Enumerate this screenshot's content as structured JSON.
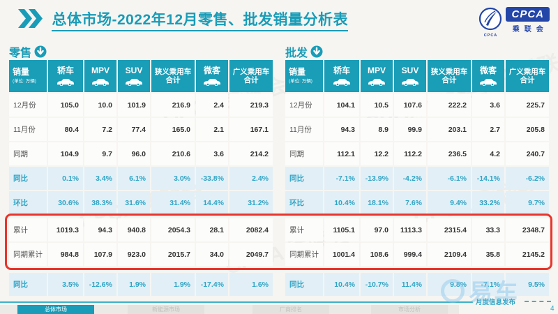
{
  "header": {
    "title": "总体市场-2022年12月零售、批发销量分析表",
    "logo": {
      "acronym": "CPCA",
      "cn_name": "乘联会",
      "circle_caption": "CPCA"
    }
  },
  "tables": [
    {
      "id": "retail",
      "section_label": "零售",
      "first_col": {
        "title": "销量",
        "unit": "(单位: 万辆)"
      },
      "columns": [
        {
          "label": "轿车",
          "icon": "car"
        },
        {
          "label": "MPV",
          "icon": "car"
        },
        {
          "label": "SUV",
          "icon": "car"
        },
        {
          "label": "狭义乘用车合计",
          "icon": null
        },
        {
          "label": "微客",
          "icon": "car"
        },
        {
          "label": "广义乘用车合计",
          "icon": null
        }
      ],
      "rows": [
        {
          "label": "12月份",
          "type": "value",
          "values": [
            "105.0",
            "10.0",
            "101.9",
            "216.9",
            "2.4",
            "219.3"
          ]
        },
        {
          "label": "11月份",
          "type": "value",
          "values": [
            "80.4",
            "7.2",
            "77.4",
            "165.0",
            "2.1",
            "167.1"
          ]
        },
        {
          "label": "同期",
          "type": "value",
          "values": [
            "104.9",
            "9.7",
            "96.0",
            "210.6",
            "3.6",
            "214.2"
          ]
        },
        {
          "label": "同比",
          "type": "percent",
          "values": [
            "0.1%",
            "3.4%",
            "6.1%",
            "3.0%",
            "-33.8%",
            "2.4%"
          ]
        },
        {
          "label": "环比",
          "type": "percent",
          "values": [
            "30.6%",
            "38.3%",
            "31.6%",
            "31.4%",
            "14.4%",
            "31.2%"
          ]
        },
        {
          "label": "累计",
          "type": "value",
          "values": [
            "1019.3",
            "94.3",
            "940.8",
            "2054.3",
            "28.1",
            "2082.4"
          ]
        },
        {
          "label": "同期累计",
          "type": "value",
          "values": [
            "984.8",
            "107.9",
            "923.0",
            "2015.7",
            "34.0",
            "2049.7"
          ]
        },
        {
          "label": "同比",
          "type": "percent",
          "values": [
            "3.5%",
            "-12.6%",
            "1.9%",
            "1.9%",
            "-17.4%",
            "1.6%"
          ]
        }
      ]
    },
    {
      "id": "wholesale",
      "section_label": "批发",
      "first_col": {
        "title": "销量",
        "unit": "(单位: 万辆)"
      },
      "columns": [
        {
          "label": "轿车",
          "icon": "car"
        },
        {
          "label": "MPV",
          "icon": "car"
        },
        {
          "label": "SUV",
          "icon": "car"
        },
        {
          "label": "狭义乘用车合计",
          "icon": null
        },
        {
          "label": "微客",
          "icon": "car"
        },
        {
          "label": "广义乘用车合计",
          "icon": null
        }
      ],
      "rows": [
        {
          "label": "12月份",
          "type": "value",
          "values": [
            "104.1",
            "10.5",
            "107.6",
            "222.2",
            "3.6",
            "225.7"
          ]
        },
        {
          "label": "11月份",
          "type": "value",
          "values": [
            "94.3",
            "8.9",
            "99.9",
            "203.1",
            "2.7",
            "205.8"
          ]
        },
        {
          "label": "同期",
          "type": "value",
          "values": [
            "112.1",
            "12.2",
            "112.2",
            "236.5",
            "4.2",
            "240.7"
          ]
        },
        {
          "label": "同比",
          "type": "percent",
          "values": [
            "-7.1%",
            "-13.9%",
            "-4.2%",
            "-6.1%",
            "-14.1%",
            "-6.2%"
          ]
        },
        {
          "label": "环比",
          "type": "percent",
          "values": [
            "10.4%",
            "18.1%",
            "7.6%",
            "9.4%",
            "33.2%",
            "9.7%"
          ]
        },
        {
          "label": "累计",
          "type": "value",
          "values": [
            "1105.1",
            "97.0",
            "1113.3",
            "2315.4",
            "33.3",
            "2348.7"
          ]
        },
        {
          "label": "同期累计",
          "type": "value",
          "values": [
            "1001.4",
            "108.6",
            "999.4",
            "2109.4",
            "35.8",
            "2145.2"
          ]
        },
        {
          "label": "同比",
          "type": "percent",
          "values": [
            "10.4%",
            "-10.7%",
            "11.4%",
            "9.8%",
            "-7.1%",
            "9.5%"
          ]
        }
      ]
    }
  ],
  "footer": {
    "note": "月度信息发布",
    "page_number": "4",
    "tabs": [
      {
        "label": "总体市场",
        "active": true
      },
      {
        "label": "新能源市场",
        "active": false
      },
      {
        "label": "厂商排名",
        "active": false
      },
      {
        "label": "市场分析",
        "active": false
      }
    ]
  },
  "watermarks": {
    "logo_text": "CPCA 乘联会",
    "bottom_right": "易车"
  },
  "colors": {
    "teal": "#199CB7",
    "header_cell": "#1A9DB7",
    "percent_text": "#2EA4C5",
    "percent_bg": "#E2EFF6",
    "red_box": "#E8352B",
    "navy": "#2446A8"
  }
}
